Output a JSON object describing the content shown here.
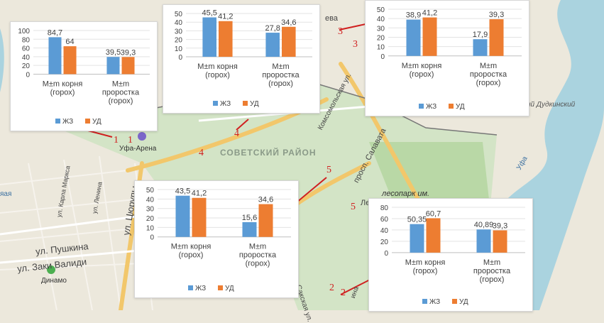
{
  "map": {
    "district_label": "СОВЕТСКИЙ РАЙОН",
    "street_labels": [
      "ул. Карла Маркса",
      "ул. Ленина",
      "ул. Цюрупы",
      "ул. Пушкина",
      "ул. Заки Валиди",
      "просп. Салавата",
      "Комсомольская ул.",
      "Сакская ул.",
      "ина",
      "ла"
    ],
    "poi_labels": [
      "Уфа-Арена",
      "Динамо",
      "лесопарк им.",
      "ий Дудкинский",
      "Уфа",
      "ева",
      "яая",
      "Ле"
    ],
    "site_numbers": [
      "1",
      "1",
      "2",
      "2",
      "3",
      "3",
      "4",
      "4",
      "5",
      "5"
    ]
  },
  "chart_data": [
    {
      "type": "bar",
      "categories": [
        "М±m корня (горох)",
        "М±m проростка (горох)"
      ],
      "series": [
        {
          "name": "ЖЗ",
          "values": [
            84.7,
            39.5
          ],
          "labels": [
            "84,7",
            "39,5"
          ]
        },
        {
          "name": "УД",
          "values": [
            64,
            39.3
          ],
          "labels": [
            "64",
            "39,3"
          ]
        }
      ],
      "yticks": [
        "0",
        "20",
        "40",
        "60",
        "80",
        "100"
      ],
      "ylim": [
        0,
        100
      ],
      "colors": {
        "ЖЗ": "#5b9bd5",
        "УД": "#ed7d31"
      },
      "legend": "bottom"
    },
    {
      "type": "bar",
      "categories": [
        "М±m корня (горох)",
        "М±m проростка (горох)"
      ],
      "series": [
        {
          "name": "ЖЗ",
          "values": [
            45.5,
            27.8
          ],
          "labels": [
            "45,5",
            "27,8"
          ]
        },
        {
          "name": "УД",
          "values": [
            41.2,
            34.6
          ],
          "labels": [
            "41,2",
            "34,6"
          ]
        }
      ],
      "yticks": [
        "0",
        "10",
        "20",
        "30",
        "40",
        "50"
      ],
      "ylim": [
        0,
        50
      ],
      "colors": {
        "ЖЗ": "#5b9bd5",
        "УД": "#ed7d31"
      },
      "legend": "bottom"
    },
    {
      "type": "bar",
      "categories": [
        "М±m корня (горох)",
        "М±m проростка (горох)"
      ],
      "series": [
        {
          "name": "ЖЗ",
          "values": [
            38.9,
            17.9
          ],
          "labels": [
            "38,9",
            "17,9"
          ]
        },
        {
          "name": "УД",
          "values": [
            41.2,
            39.3
          ],
          "labels": [
            "41,2",
            "39,3"
          ]
        }
      ],
      "yticks": [
        "0",
        "10",
        "20",
        "30",
        "40",
        "50"
      ],
      "ylim": [
        0,
        50
      ],
      "colors": {
        "ЖЗ": "#5b9bd5",
        "УД": "#ed7d31"
      },
      "legend": "bottom"
    },
    {
      "type": "bar",
      "categories": [
        "М±m корня (горох)",
        "М±m проростка (горох)"
      ],
      "series": [
        {
          "name": "ЖЗ",
          "values": [
            43.5,
            15.6
          ],
          "labels": [
            "43,5",
            "15,6"
          ]
        },
        {
          "name": "УД",
          "values": [
            41.2,
            34.6
          ],
          "labels": [
            "41,2",
            "34,6"
          ]
        }
      ],
      "yticks": [
        "0",
        "10",
        "20",
        "30",
        "40",
        "50"
      ],
      "ylim": [
        0,
        50
      ],
      "colors": {
        "ЖЗ": "#5b9bd5",
        "УД": "#ed7d31"
      },
      "legend": "bottom"
    },
    {
      "type": "bar",
      "categories": [
        "М±m корня (горох)",
        "М±m проростка (горох)"
      ],
      "series": [
        {
          "name": "ЖЗ",
          "values": [
            50.35,
            40.89
          ],
          "labels": [
            "50,35",
            "40,89"
          ]
        },
        {
          "name": "УД",
          "values": [
            60.7,
            39.3
          ],
          "labels": [
            "60,7",
            "39,3"
          ]
        }
      ],
      "yticks": [
        "0",
        "20",
        "40",
        "60",
        "80"
      ],
      "ylim": [
        0,
        80
      ],
      "colors": {
        "ЖЗ": "#5b9bd5",
        "УД": "#ed7d31"
      },
      "legend": "bottom"
    }
  ]
}
